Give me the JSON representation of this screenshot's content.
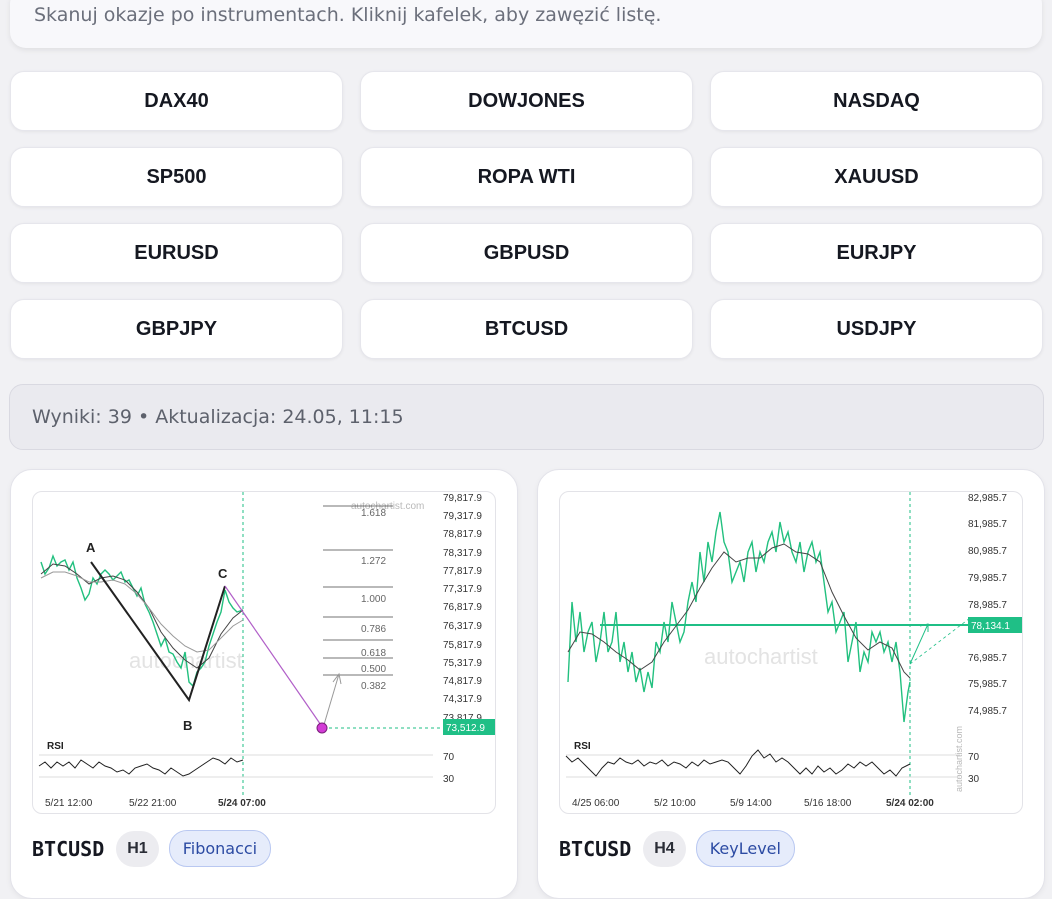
{
  "header": {
    "subtitle": "Skanuj okazje po instrumentach. Kliknij kafelek, aby zawęzić listę."
  },
  "tiles": [
    "DAX40",
    "DOWJONES",
    "NASDAQ",
    "SP500",
    "ROPA WTI",
    "XAUUSD",
    "EURUSD",
    "GBPUSD",
    "EURJPY",
    "GBPJPY",
    "BTCUSD",
    "USDJPY"
  ],
  "results": {
    "text": "Wyniki: 39 • Aktualizacja: 24.05, 11:15"
  },
  "cards": [
    {
      "symbol": "BTCUSD",
      "timeframe": "H1",
      "pattern": "Fibonacci",
      "chart": {
        "watermark": "autochartist",
        "watermark_small": "autochartist.com",
        "price_ticks": [
          "79,817.9",
          "79,317.9",
          "78,817.9",
          "78,317.9",
          "77,817.9",
          "77,317.9",
          "76,817.9",
          "76,317.9",
          "75,817.9",
          "75,317.9",
          "74,817.9",
          "74,317.9",
          "73,817.9"
        ],
        "price_label": "73,512.9",
        "fib_levels": [
          "1.618",
          "1.272",
          "1.000",
          "0.786",
          "0.618",
          "0.500",
          "0.382"
        ],
        "points": [
          "A",
          "B",
          "C"
        ],
        "rsi_label": "RSI",
        "rsi_ticks": [
          "70",
          "30"
        ],
        "time_ticks": [
          "5/21 12:00",
          "5/22 21:00",
          "5/24 07:00"
        ]
      }
    },
    {
      "symbol": "BTCUSD",
      "timeframe": "H4",
      "pattern": "KeyLevel",
      "chart": {
        "watermark": "autochartist",
        "watermark_small": "autochartist.com",
        "price_ticks": [
          "82,985.7",
          "81,985.7",
          "80,985.7",
          "79,985.7",
          "78,985.7",
          "76,985.7",
          "75,985.7",
          "74,985.7"
        ],
        "price_label": "78,134.1",
        "rsi_label": "RSI",
        "rsi_ticks": [
          "70",
          "30"
        ],
        "time_ticks": [
          "4/25 06:00",
          "5/2 10:00",
          "5/9 14:00",
          "5/16 18:00",
          "5/24 02:00"
        ]
      }
    }
  ],
  "colors": {
    "accent_green": "#1fbf86",
    "candle_up": "#22c07f",
    "line_dark": "#222222",
    "target_purple": "#b15fc8"
  }
}
